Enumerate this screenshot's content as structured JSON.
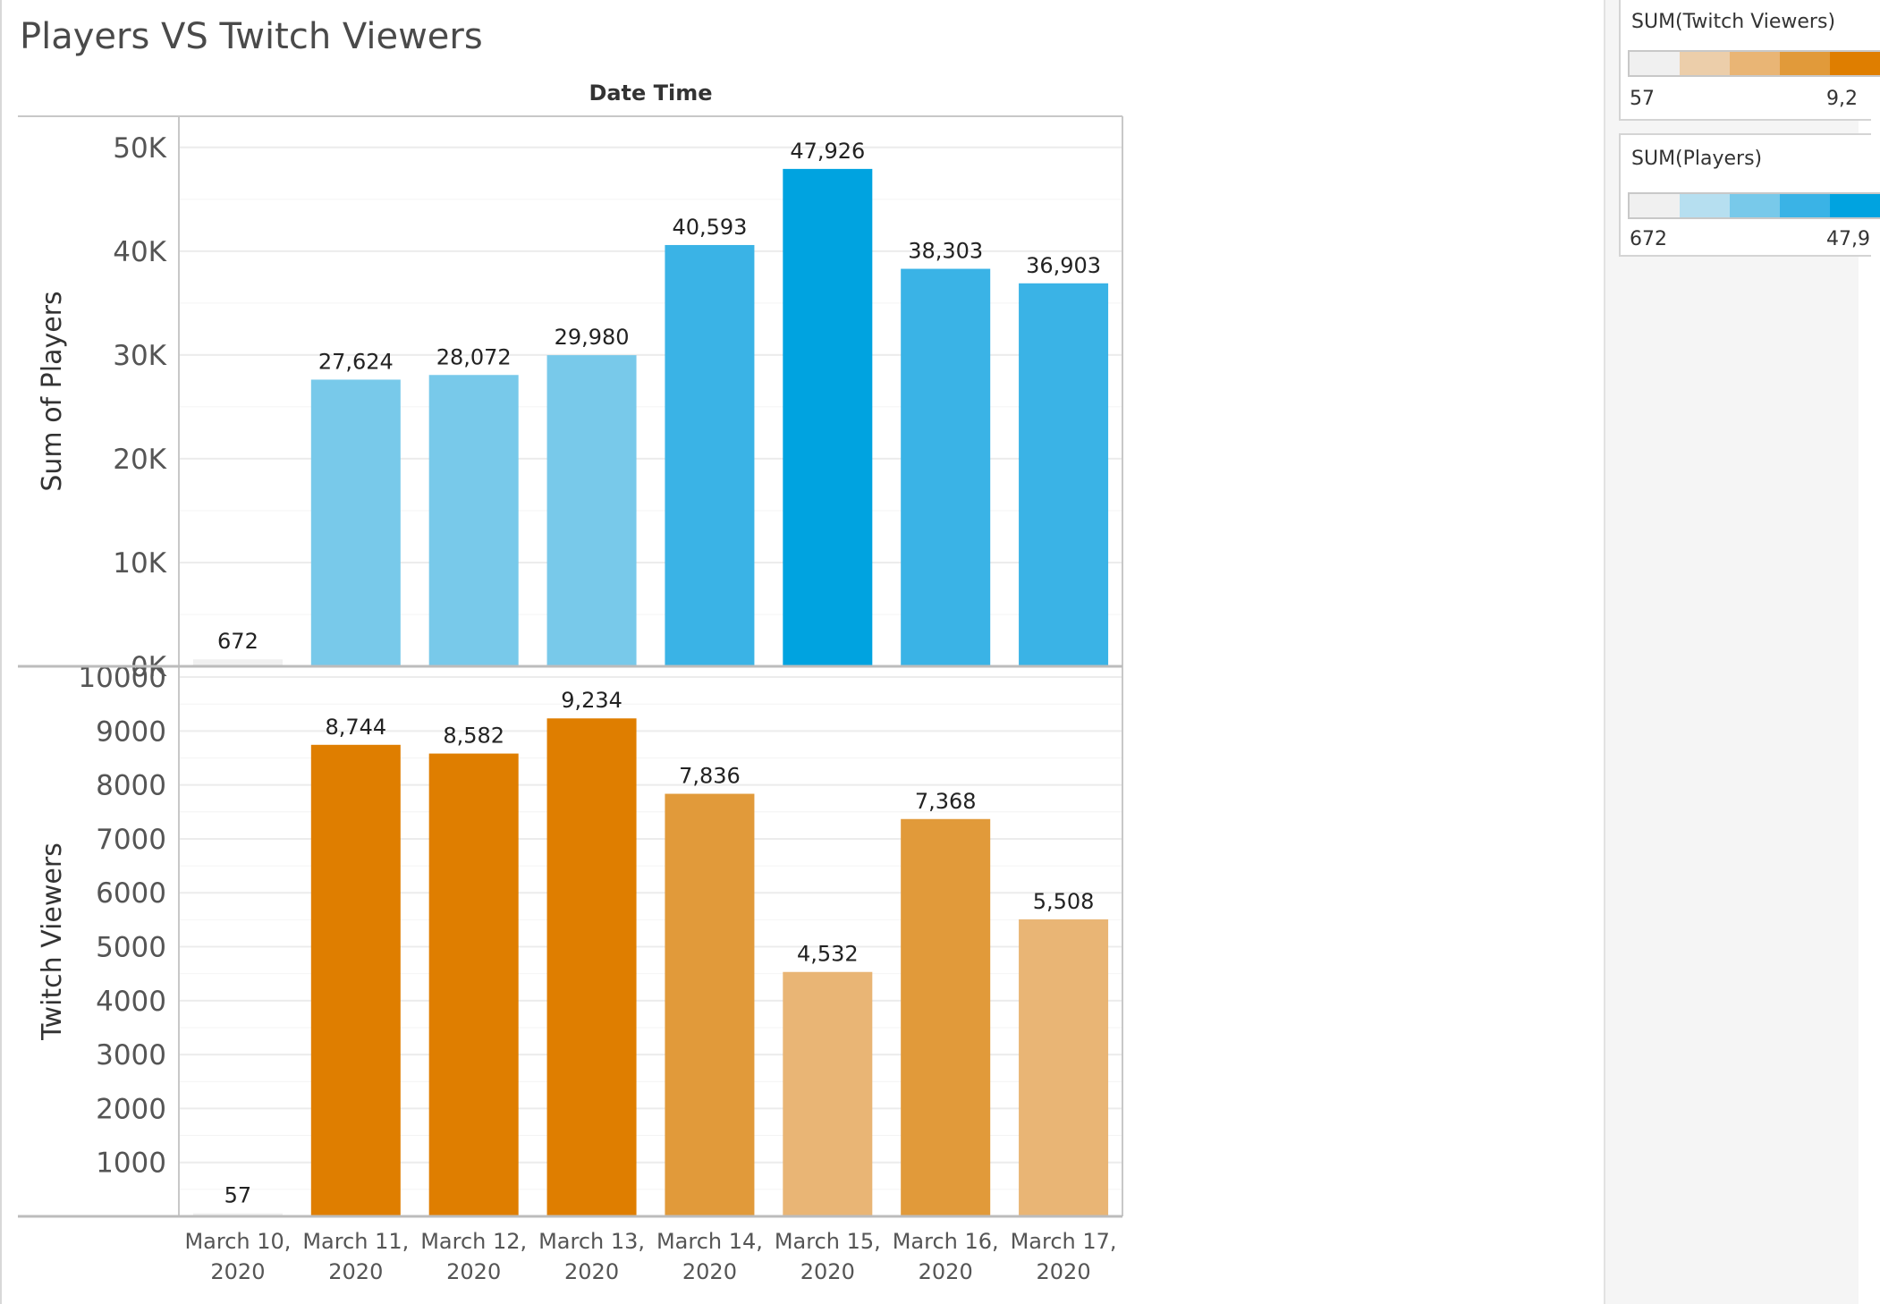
{
  "title": "Players VS Twitch Viewers",
  "chart_data": {
    "type": "bar",
    "title": "Players VS Twitch Viewers",
    "column_header": "Date Time",
    "categories": [
      "March 10,|2020",
      "March 11,|2020",
      "March 12,|2020",
      "March 13,|2020",
      "March 14,|2020",
      "March 15,|2020",
      "March 16,|2020",
      "March 17,|2020"
    ],
    "panels": [
      {
        "name": "Sum of Players",
        "ylabel": "Sum of Players",
        "ylim": [
          0,
          53000
        ],
        "ticks": [
          0,
          10000,
          20000,
          30000,
          40000,
          50000
        ],
        "tick_labels": [
          "0K",
          "10K",
          "20K",
          "30K",
          "40K",
          "50K"
        ],
        "values": [
          672,
          27624,
          28072,
          29980,
          40593,
          47926,
          38303,
          36903
        ],
        "data_labels": [
          "672",
          "27,624",
          "28,072",
          "29,980",
          "40,593",
          "47,926",
          "38,303",
          "36,903"
        ],
        "color_scale": [
          "#f0f0f0",
          "#b6dff0",
          "#78c9ea",
          "#3ab3e6",
          "#00a3e0"
        ]
      },
      {
        "name": "Twitch Viewers",
        "ylabel": "Twitch Viewers",
        "ylim": [
          0,
          10200
        ],
        "ticks": [
          1000,
          2000,
          3000,
          4000,
          5000,
          6000,
          7000,
          8000,
          9000,
          10000
        ],
        "tick_labels": [
          "1000",
          "2000",
          "3000",
          "4000",
          "5000",
          "6000",
          "7000",
          "8000",
          "9000",
          "10000"
        ],
        "values": [
          57,
          8744,
          8582,
          9234,
          7836,
          4532,
          7368,
          5508
        ],
        "data_labels": [
          "57",
          "8,744",
          "8,582",
          "9,234",
          "7,836",
          "4,532",
          "7,368",
          "5,508"
        ],
        "color_scale": [
          "#f0f0f0",
          "#ecceaa",
          "#e9b575",
          "#e19a3a",
          "#df7e00"
        ]
      }
    ]
  },
  "legends": [
    {
      "title": "SUM(Twitch Viewers)",
      "min": "57",
      "max": "9,2",
      "colors": [
        "#f0f0f0",
        "#ecceaa",
        "#e9b575",
        "#e19a3a",
        "#df7e00"
      ]
    },
    {
      "title": "SUM(Players)",
      "min": "672",
      "max": "47,9",
      "colors": [
        "#f0f0f0",
        "#b6dff0",
        "#78c9ea",
        "#3ab3e6",
        "#00a3e0"
      ]
    }
  ],
  "colors": {
    "grid": "#ececec",
    "axis": "#c8c8c8",
    "tick_text": "#555555"
  }
}
